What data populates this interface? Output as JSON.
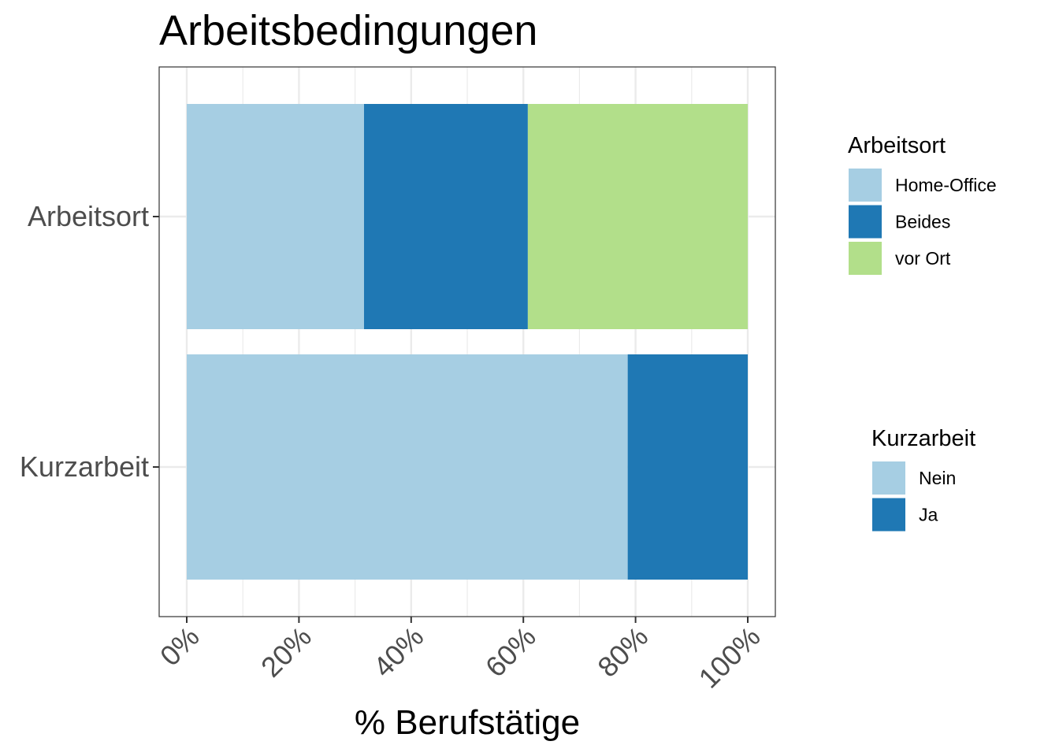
{
  "chart_data": {
    "type": "bar",
    "orientation": "horizontal",
    "stacked": true,
    "title": "Arbeitsbedingungen",
    "xlabel": "% Berufstätige",
    "ylabel": "",
    "xlim": [
      0,
      1
    ],
    "x_ticks": [
      {
        "value": 0,
        "label": "0%"
      },
      {
        "value": 0.2,
        "label": "20%"
      },
      {
        "value": 0.4,
        "label": "40%"
      },
      {
        "value": 0.6,
        "label": "60%"
      },
      {
        "value": 0.8,
        "label": "80%"
      },
      {
        "value": 1.0,
        "label": "100%"
      }
    ],
    "grid": true,
    "categories": [
      "Arbeitsort",
      "Kurzarbeit"
    ],
    "bars": [
      {
        "category": "Arbeitsort",
        "segments": [
          {
            "name": "Home-Office",
            "value": 0.316,
            "color": "#a6cee3"
          },
          {
            "name": "Beides",
            "value": 0.292,
            "color": "#1f78b4"
          },
          {
            "name": "vor Ort",
            "value": 0.392,
            "color": "#b2df8a"
          }
        ]
      },
      {
        "category": "Kurzarbeit",
        "segments": [
          {
            "name": "Nein",
            "value": 0.786,
            "color": "#a6cee3"
          },
          {
            "name": "Ja",
            "value": 0.214,
            "color": "#1f78b4"
          }
        ]
      }
    ],
    "legends": [
      {
        "title": "Arbeitsort",
        "placement": "right",
        "items": [
          {
            "label": "Home-Office",
            "color": "#a6cee3"
          },
          {
            "label": "Beides",
            "color": "#1f78b4"
          },
          {
            "label": "vor Ort",
            "color": "#b2df8a"
          }
        ]
      },
      {
        "title": "Kurzarbeit",
        "placement": "right",
        "items": [
          {
            "label": "Nein",
            "color": "#a6cee3"
          },
          {
            "label": "Ja",
            "color": "#1f78b4"
          }
        ]
      }
    ]
  }
}
